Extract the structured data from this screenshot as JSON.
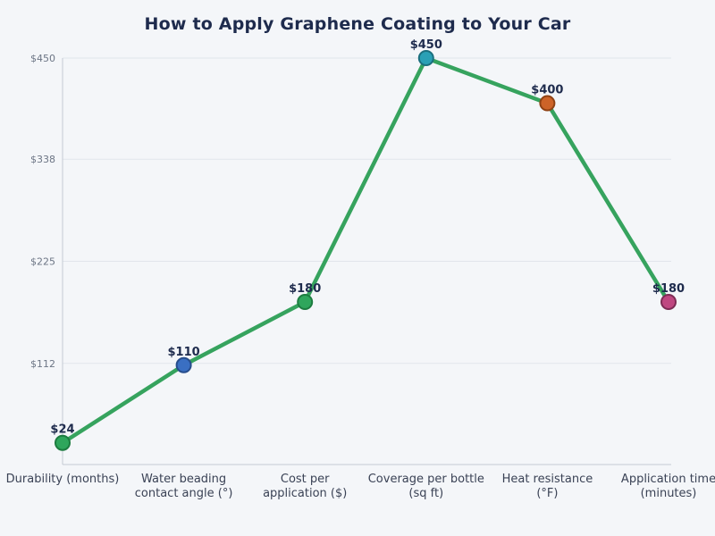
{
  "page": {
    "background_color": "#f4f6f9"
  },
  "chart_data": {
    "type": "line",
    "title": "How to Apply Graphene Coating to Your Car",
    "categories": [
      "Durability (months)",
      "Water beading contact angle (°)",
      "Cost per application ($)",
      "Coverage per bottle (sq ft)",
      "Heat resistance (°F)",
      "Application time (minutes)"
    ],
    "category_lines": [
      [
        "Durability (months)"
      ],
      [
        "Water beading",
        "contact angle (°)"
      ],
      [
        "Cost per",
        "application ($)"
      ],
      [
        "Coverage per bottle",
        "(sq ft)"
      ],
      [
        "Heat resistance",
        "(°F)"
      ],
      [
        "Application time",
        "(minutes)"
      ]
    ],
    "values": [
      24,
      110,
      180,
      450,
      400,
      180
    ],
    "point_labels": [
      "$24",
      "$110",
      "$180",
      "$450",
      "$400",
      "$180"
    ],
    "yticks": {
      "values": [
        450,
        338,
        225,
        112
      ],
      "labels": [
        "$450",
        "$338",
        "$225",
        "$112"
      ]
    },
    "ylim": [
      0,
      450
    ],
    "xlabel": "",
    "ylabel": "",
    "legend": "none",
    "grid": "horizontal",
    "colors": {
      "line": "#36a35e",
      "point_fills": [
        "#2fa65c",
        "#3a6fc2",
        "#2fa65c",
        "#2aa0b5",
        "#cd6328",
        "#bf4781"
      ],
      "point_strokes": [
        "#1d7c40",
        "#274d8c",
        "#1d7c40",
        "#1b6f7e",
        "#8f4214",
        "#7d2c55"
      ],
      "title_text": "#1e2b4d",
      "point_label_text": "#1e2b4d",
      "axis_label_text": "#3a4255",
      "tick_label_text": "#6c7585",
      "gridline": "#e1e5ec",
      "spine": "#c4c9d3"
    }
  }
}
